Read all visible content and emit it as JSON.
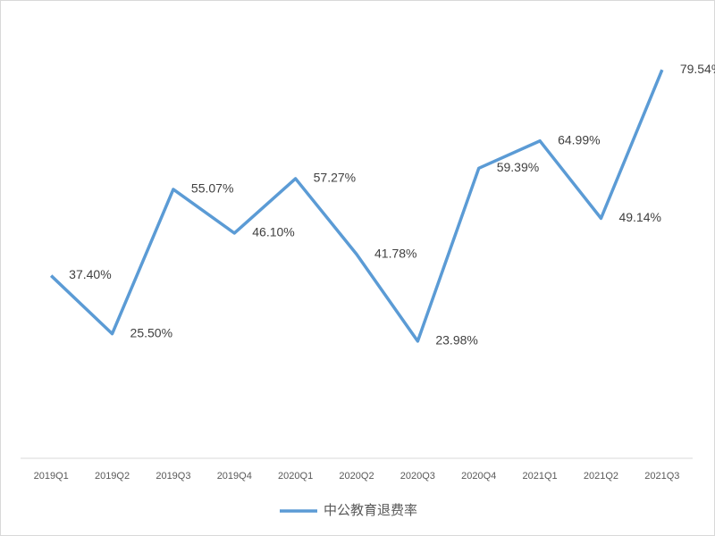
{
  "chart_data": {
    "type": "line",
    "categories": [
      "2019Q1",
      "2019Q2",
      "2019Q3",
      "2019Q4",
      "2020Q1",
      "2020Q2",
      "2020Q3",
      "2020Q4",
      "2021Q1",
      "2021Q2",
      "2021Q3"
    ],
    "series": [
      {
        "name": "中公教育退费率",
        "color": "#5b9bd5",
        "values": [
          37.4,
          25.5,
          55.07,
          46.1,
          57.27,
          41.78,
          23.98,
          59.39,
          64.99,
          49.14,
          79.54
        ],
        "value_labels": [
          "37.40%",
          "25.50%",
          "55.07%",
          "46.10%",
          "57.27%",
          "41.78%",
          "23.98%",
          "59.39%",
          "64.99%",
          "49.14%",
          "79.54%"
        ]
      }
    ],
    "ylim": [
      0,
      90
    ],
    "legend": "bottom"
  }
}
